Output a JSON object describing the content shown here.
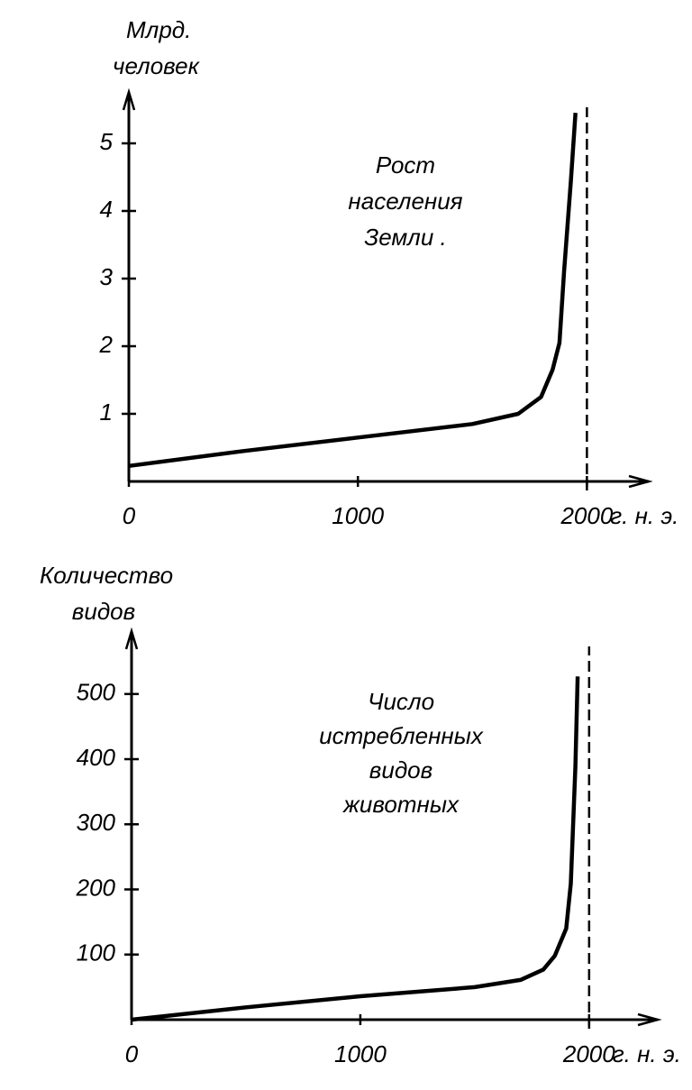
{
  "chart_data": [
    {
      "type": "line",
      "ylabel": [
        "Млрд.",
        "человек"
      ],
      "annotation": [
        "Рост",
        "населения",
        "Земли ."
      ],
      "x": [
        0,
        500,
        1000,
        1500,
        1700,
        1800,
        1850,
        1880,
        1900,
        1930,
        1950
      ],
      "values": [
        0.23,
        0.45,
        0.65,
        0.85,
        1.0,
        1.25,
        1.65,
        2.05,
        3.1,
        4.45,
        5.45
      ],
      "color": "#000000",
      "xlim": [
        0,
        2270
      ],
      "ylim": [
        0,
        5.6
      ],
      "xticks": [
        0,
        1000,
        2000
      ],
      "yticks": [
        1,
        2,
        3,
        4,
        5
      ],
      "x_unit": "г. н. э.",
      "vline": 2000
    },
    {
      "type": "line",
      "ylabel": [
        "Количество",
        "видов"
      ],
      "annotation": [
        "Число",
        "истребленных",
        "видов",
        "животных"
      ],
      "x": [
        0,
        500,
        1000,
        1500,
        1700,
        1800,
        1850,
        1900,
        1920,
        1940,
        1950
      ],
      "values": [
        0,
        19,
        36,
        50,
        61,
        77,
        98,
        140,
        209,
        389,
        527
      ],
      "color": "#000000",
      "xlim": [
        0,
        2300
      ],
      "ylim": [
        0,
        580
      ],
      "xticks": [
        0,
        1000,
        2000
      ],
      "yticks": [
        100,
        200,
        300,
        400,
        500
      ],
      "x_unit": "г. н. э.",
      "vline": 2000
    }
  ]
}
